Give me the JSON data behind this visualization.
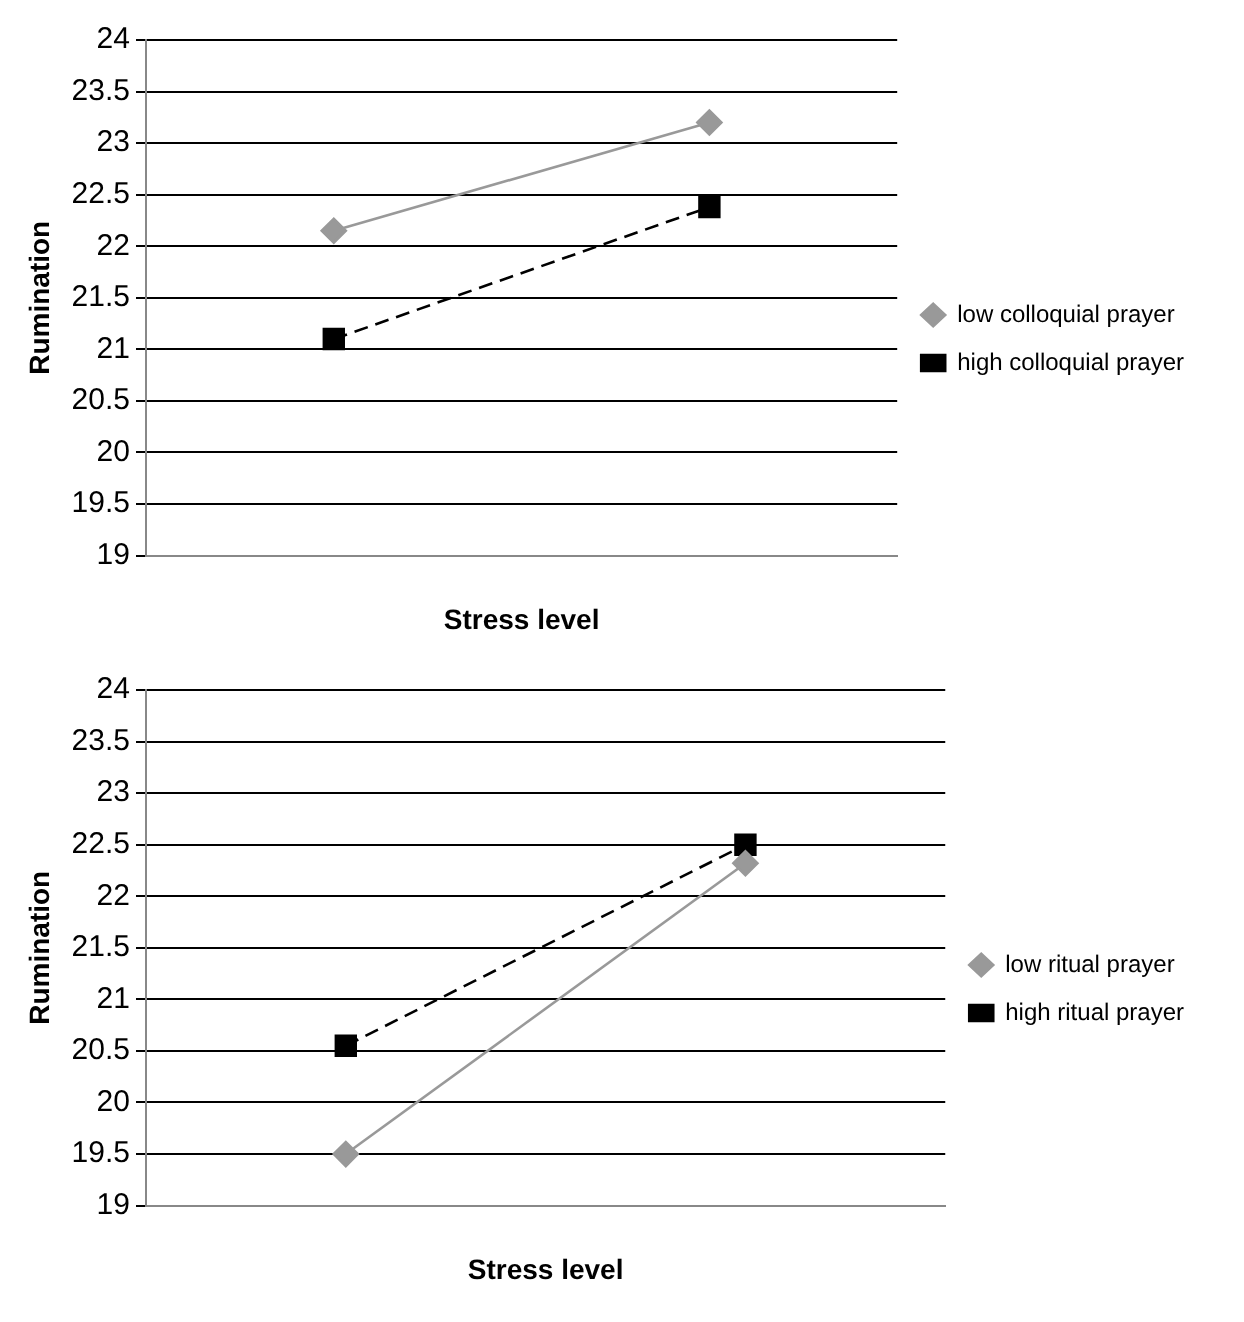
{
  "chart_data": [
    {
      "type": "line",
      "categories": [
        null,
        null
      ],
      "xlabel": "Stress level",
      "ylabel": "Rumination",
      "ylim": [
        19,
        24
      ],
      "yticks": [
        19,
        19.5,
        20,
        20.5,
        21,
        21.5,
        22,
        22.5,
        23,
        23.5,
        24
      ],
      "grid": "y",
      "legend": "right",
      "series": [
        {
          "name": "low colloquial prayer",
          "color": "#999999",
          "marker": "diamond",
          "line_style": "solid",
          "values": [
            22.15,
            23.2
          ]
        },
        {
          "name": "high colloquial prayer",
          "color": "#000000",
          "marker": "square",
          "line_style": "dashed",
          "values": [
            21.1,
            22.38
          ]
        }
      ]
    },
    {
      "type": "line",
      "categories": [
        null,
        null
      ],
      "xlabel": "Stress level",
      "ylabel": "Rumination",
      "ylim": [
        19,
        24
      ],
      "yticks": [
        19,
        19.5,
        20,
        20.5,
        21,
        21.5,
        22,
        22.5,
        23,
        23.5,
        24
      ],
      "grid": "y",
      "legend": "right",
      "series": [
        {
          "name": "low ritual prayer",
          "color": "#999999",
          "marker": "diamond",
          "line_style": "solid",
          "values": [
            19.5,
            22.32
          ]
        },
        {
          "name": "high ritual prayer",
          "color": "#000000",
          "marker": "square",
          "line_style": "dashed",
          "values": [
            20.55,
            22.5
          ]
        }
      ]
    }
  ]
}
